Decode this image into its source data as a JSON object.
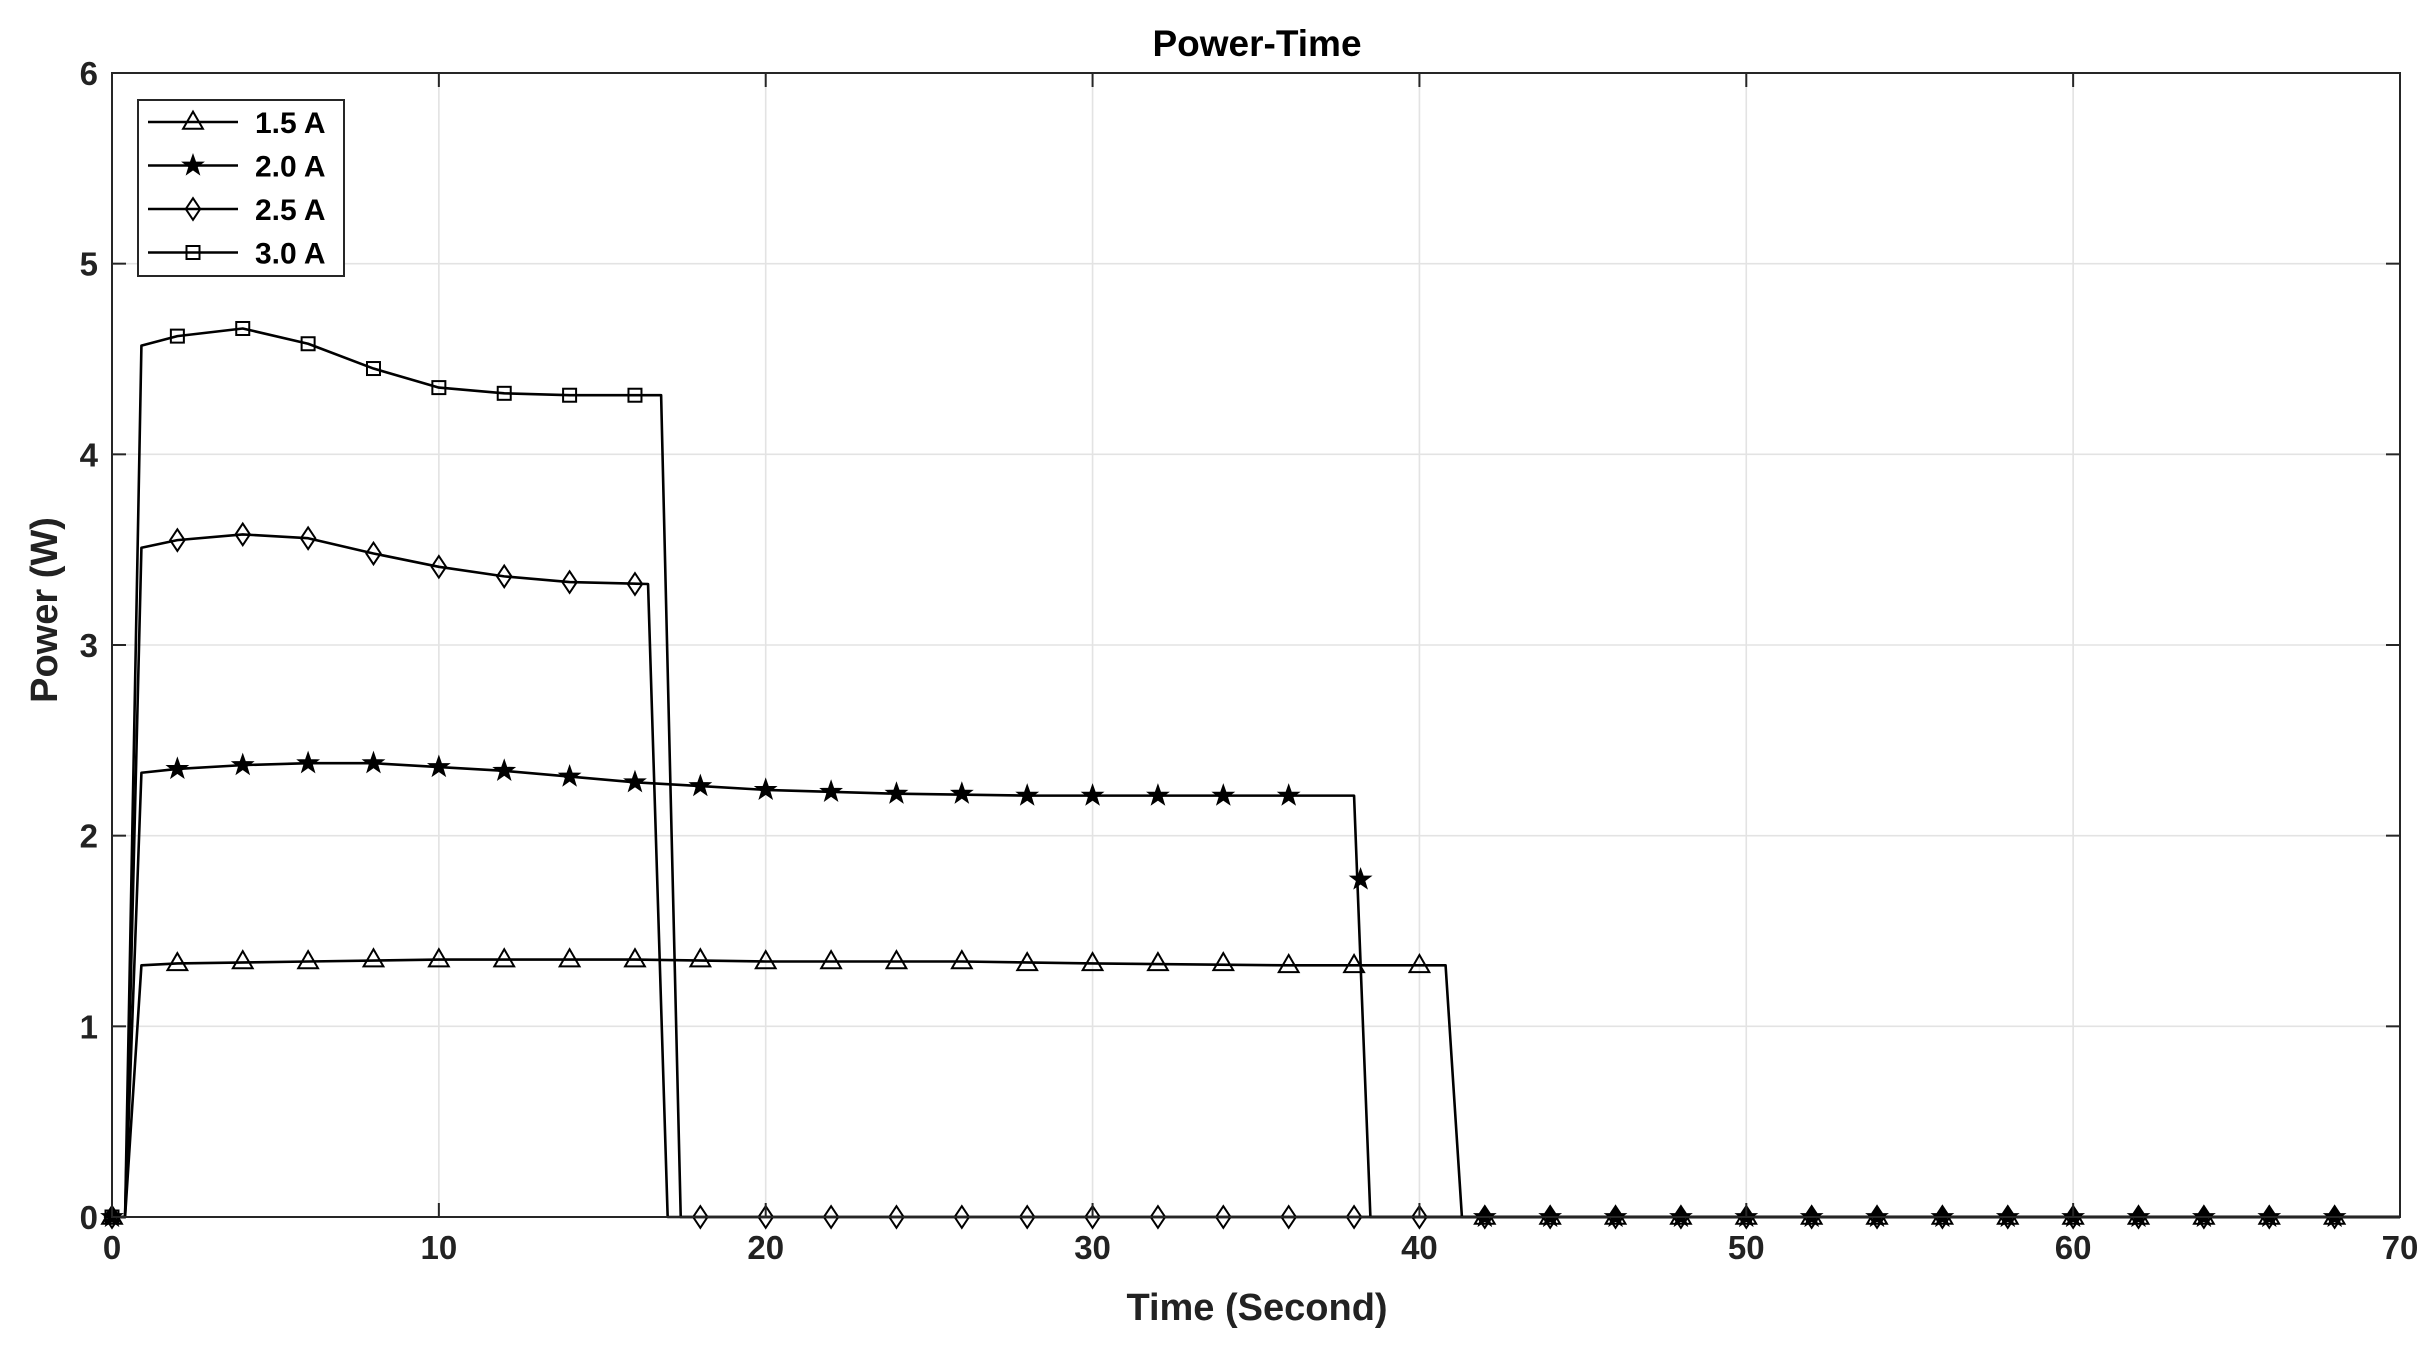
{
  "chart_data": {
    "type": "line",
    "title": "Power-Time",
    "xlabel": "Time (Second)",
    "ylabel": "Power (W)",
    "xlim": [
      0,
      70
    ],
    "ylim": [
      0,
      6
    ],
    "xticks": [
      0,
      10,
      20,
      30,
      40,
      50,
      60,
      70
    ],
    "yticks": [
      0,
      1,
      2,
      3,
      4,
      5,
      6
    ],
    "grid": true,
    "legend_position": "top-left",
    "line_color": "#000000",
    "grid_color": "#e3e3e3",
    "series": [
      {
        "name": "1.5 A",
        "marker": "triangle",
        "line": [
          [
            0,
            0
          ],
          [
            0.4,
            0
          ],
          [
            0.9,
            1.32
          ],
          [
            2,
            1.33
          ],
          [
            6,
            1.34
          ],
          [
            10,
            1.35
          ],
          [
            14,
            1.35
          ],
          [
            16,
            1.35
          ],
          [
            20,
            1.34
          ],
          [
            26,
            1.34
          ],
          [
            30,
            1.33
          ],
          [
            36,
            1.32
          ],
          [
            40.8,
            1.32
          ],
          [
            41.3,
            0
          ],
          [
            70,
            0
          ]
        ],
        "markers": [
          [
            0,
            0
          ],
          [
            2,
            1.33
          ],
          [
            4,
            1.34
          ],
          [
            6,
            1.34
          ],
          [
            8,
            1.35
          ],
          [
            10,
            1.35
          ],
          [
            12,
            1.35
          ],
          [
            14,
            1.35
          ],
          [
            16,
            1.35
          ],
          [
            18,
            1.35
          ],
          [
            20,
            1.34
          ],
          [
            22,
            1.34
          ],
          [
            24,
            1.34
          ],
          [
            26,
            1.34
          ],
          [
            28,
            1.33
          ],
          [
            30,
            1.33
          ],
          [
            32,
            1.33
          ],
          [
            34,
            1.33
          ],
          [
            36,
            1.32
          ],
          [
            38,
            1.32
          ],
          [
            40,
            1.32
          ],
          [
            42,
            0
          ],
          [
            44,
            0
          ],
          [
            46,
            0
          ],
          [
            48,
            0
          ],
          [
            50,
            0
          ],
          [
            52,
            0
          ],
          [
            54,
            0
          ],
          [
            56,
            0
          ],
          [
            58,
            0
          ],
          [
            60,
            0
          ],
          [
            62,
            0
          ],
          [
            64,
            0
          ],
          [
            66,
            0
          ],
          [
            68,
            0
          ]
        ]
      },
      {
        "name": "2.0 A",
        "marker": "star",
        "line": [
          [
            0,
            0
          ],
          [
            0.4,
            0
          ],
          [
            0.9,
            2.33
          ],
          [
            2,
            2.35
          ],
          [
            4,
            2.37
          ],
          [
            6,
            2.38
          ],
          [
            8,
            2.38
          ],
          [
            10,
            2.36
          ],
          [
            12,
            2.34
          ],
          [
            14,
            2.31
          ],
          [
            16,
            2.28
          ],
          [
            18,
            2.26
          ],
          [
            20,
            2.24
          ],
          [
            24,
            2.22
          ],
          [
            28,
            2.21
          ],
          [
            38,
            2.21
          ],
          [
            38.5,
            0
          ],
          [
            70,
            0
          ]
        ],
        "markers": [
          [
            0,
            0
          ],
          [
            2,
            2.35
          ],
          [
            4,
            2.37
          ],
          [
            6,
            2.38
          ],
          [
            8,
            2.38
          ],
          [
            10,
            2.36
          ],
          [
            12,
            2.34
          ],
          [
            14,
            2.31
          ],
          [
            16,
            2.28
          ],
          [
            18,
            2.26
          ],
          [
            20,
            2.24
          ],
          [
            22,
            2.23
          ],
          [
            24,
            2.22
          ],
          [
            26,
            2.22
          ],
          [
            28,
            2.21
          ],
          [
            30,
            2.21
          ],
          [
            32,
            2.21
          ],
          [
            34,
            2.21
          ],
          [
            36,
            2.21
          ],
          [
            38.2,
            1.77
          ],
          [
            42,
            0
          ],
          [
            44,
            0
          ],
          [
            46,
            0
          ],
          [
            48,
            0
          ],
          [
            50,
            0
          ],
          [
            52,
            0
          ],
          [
            54,
            0
          ],
          [
            56,
            0
          ],
          [
            58,
            0
          ],
          [
            60,
            0
          ],
          [
            62,
            0
          ],
          [
            64,
            0
          ],
          [
            66,
            0
          ],
          [
            68,
            0
          ]
        ]
      },
      {
        "name": "2.5 A",
        "marker": "diamond",
        "line": [
          [
            0,
            0
          ],
          [
            0.4,
            0
          ],
          [
            0.9,
            3.51
          ],
          [
            2,
            3.55
          ],
          [
            4,
            3.58
          ],
          [
            6,
            3.56
          ],
          [
            8,
            3.48
          ],
          [
            10,
            3.41
          ],
          [
            12,
            3.36
          ],
          [
            14,
            3.33
          ],
          [
            16.4,
            3.32
          ],
          [
            17,
            0
          ],
          [
            70,
            0
          ]
        ],
        "markers": [
          [
            0,
            0
          ],
          [
            2,
            3.55
          ],
          [
            4,
            3.58
          ],
          [
            6,
            3.56
          ],
          [
            8,
            3.48
          ],
          [
            10,
            3.41
          ],
          [
            12,
            3.36
          ],
          [
            14,
            3.33
          ],
          [
            16,
            3.32
          ],
          [
            18,
            0
          ],
          [
            20,
            0
          ],
          [
            22,
            0
          ],
          [
            24,
            0
          ],
          [
            26,
            0
          ],
          [
            28,
            0
          ],
          [
            30,
            0
          ],
          [
            32,
            0
          ],
          [
            34,
            0
          ],
          [
            36,
            0
          ],
          [
            38,
            0
          ],
          [
            40,
            0
          ],
          [
            42,
            0
          ],
          [
            44,
            0
          ],
          [
            46,
            0
          ],
          [
            48,
            0
          ],
          [
            50,
            0
          ],
          [
            52,
            0
          ],
          [
            54,
            0
          ],
          [
            56,
            0
          ],
          [
            58,
            0
          ],
          [
            60,
            0
          ],
          [
            62,
            0
          ],
          [
            64,
            0
          ],
          [
            66,
            0
          ],
          [
            68,
            0
          ]
        ]
      },
      {
        "name": "3.0 A",
        "marker": "square",
        "line": [
          [
            0,
            0
          ],
          [
            0.4,
            0
          ],
          [
            0.9,
            4.57
          ],
          [
            2,
            4.62
          ],
          [
            4,
            4.66
          ],
          [
            6,
            4.58
          ],
          [
            8,
            4.45
          ],
          [
            10,
            4.35
          ],
          [
            12,
            4.32
          ],
          [
            14,
            4.31
          ],
          [
            16.8,
            4.31
          ],
          [
            17.4,
            0
          ],
          [
            70,
            0
          ]
        ],
        "markers": [
          [
            0,
            0
          ],
          [
            2,
            4.62
          ],
          [
            4,
            4.66
          ],
          [
            6,
            4.58
          ],
          [
            8,
            4.45
          ],
          [
            10,
            4.35
          ],
          [
            12,
            4.32
          ],
          [
            14,
            4.31
          ],
          [
            16,
            4.31
          ]
        ]
      }
    ]
  }
}
